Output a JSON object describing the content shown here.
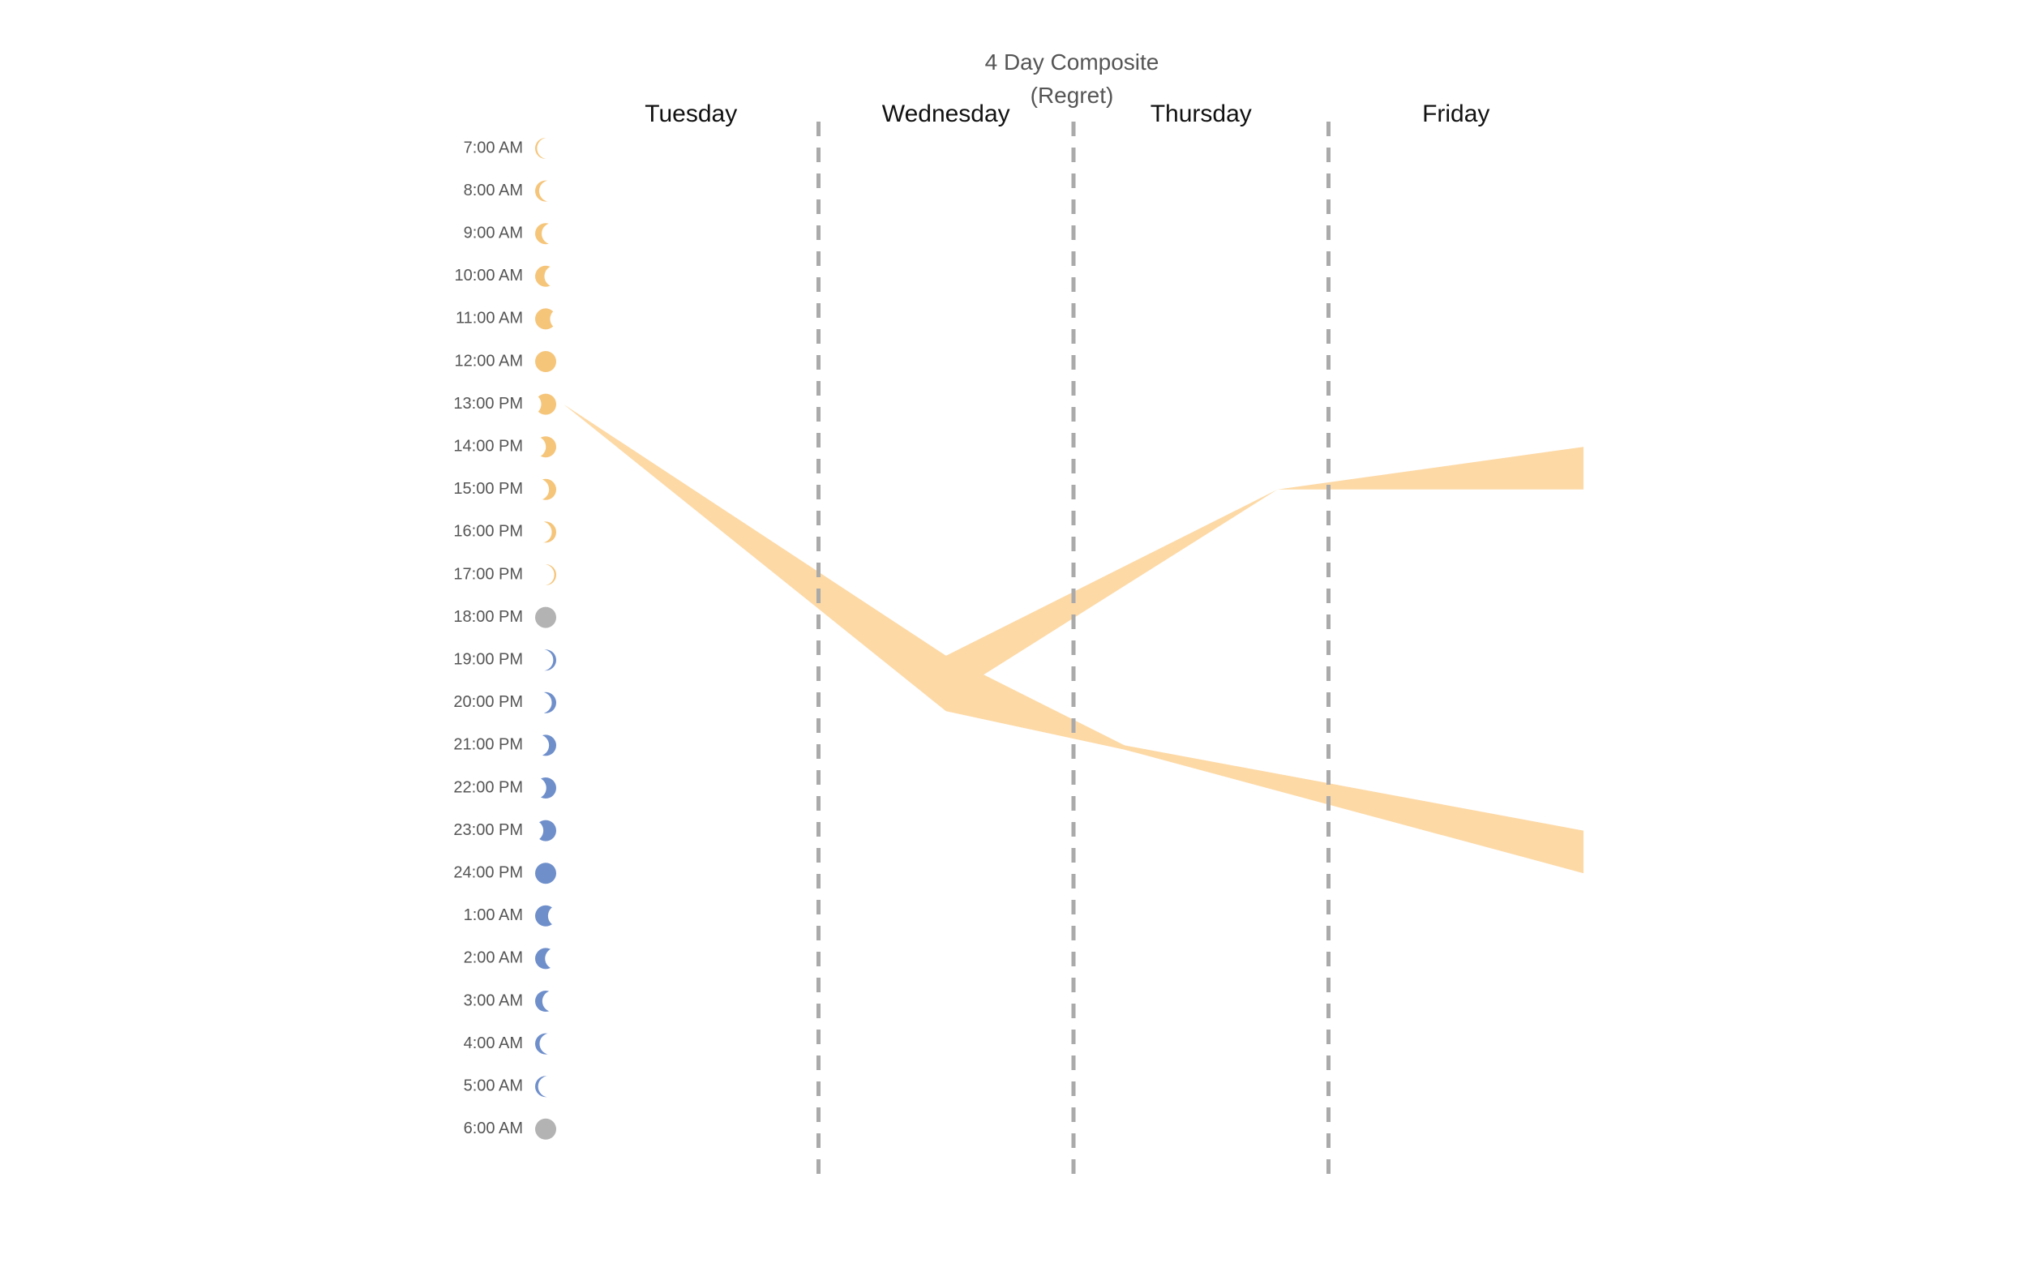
{
  "chart_data": {
    "type": "area",
    "title": "4 Day Composite",
    "subtitle": "(Regret)",
    "days": [
      "Tuesday",
      "Wednesday",
      "Thursday",
      "Friday"
    ],
    "hours": [
      {
        "label": "7:00 AM",
        "icon": "waxing-crescent-sun-icon",
        "phase": 0.1,
        "color": "#f5c57a"
      },
      {
        "label": "8:00 AM",
        "icon": "waxing-crescent-sun-icon",
        "phase": 0.2,
        "color": "#f5c57a"
      },
      {
        "label": "9:00 AM",
        "icon": "waxing-crescent-sun-icon",
        "phase": 0.32,
        "color": "#f5c57a"
      },
      {
        "label": "10:00 AM",
        "icon": "waxing-crescent-sun-icon",
        "phase": 0.45,
        "color": "#f5c57a"
      },
      {
        "label": "11:00 AM",
        "icon": "waxing-gibbous-sun-icon",
        "phase": 0.72,
        "color": "#f5c57a"
      },
      {
        "label": "12:00 AM",
        "icon": "full-sun-icon",
        "phase": 1.0,
        "color": "#f5c57a"
      },
      {
        "label": "13:00 PM",
        "icon": "waning-gibbous-sun-icon",
        "phase": 0.72,
        "color": "#f5c57a"
      },
      {
        "label": "14:00 PM",
        "icon": "waning-crescent-sun-icon",
        "phase": 0.5,
        "color": "#f5c57a"
      },
      {
        "label": "15:00 PM",
        "icon": "waning-crescent-sun-icon",
        "phase": 0.35,
        "color": "#f5c57a"
      },
      {
        "label": "16:00 PM",
        "icon": "waning-crescent-sun-icon",
        "phase": 0.22,
        "color": "#f5c57a"
      },
      {
        "label": "17:00 PM",
        "icon": "waning-crescent-sun-icon",
        "phase": 0.1,
        "color": "#f5c57a"
      },
      {
        "label": "18:00 PM",
        "icon": "transition-dot-icon",
        "phase": 1.0,
        "color": "#b3b3b3"
      },
      {
        "label": "19:00 PM",
        "icon": "waxing-crescent-moon-icon",
        "phase": 0.15,
        "color": "#6f8fcb"
      },
      {
        "label": "20:00 PM",
        "icon": "waxing-crescent-moon-icon",
        "phase": 0.22,
        "color": "#6f8fcb"
      },
      {
        "label": "21:00 PM",
        "icon": "waxing-crescent-moon-icon",
        "phase": 0.35,
        "color": "#6f8fcb"
      },
      {
        "label": "22:00 PM",
        "icon": "waxing-crescent-moon-icon",
        "phase": 0.48,
        "color": "#6f8fcb"
      },
      {
        "label": "23:00 PM",
        "icon": "waxing-gibbous-moon-icon",
        "phase": 0.62,
        "color": "#6f8fcb"
      },
      {
        "label": "24:00 PM",
        "icon": "full-moon-icon",
        "phase": 1.0,
        "color": "#6f8fcb"
      },
      {
        "label": "1:00 AM",
        "icon": "waning-gibbous-moon-icon",
        "phase": 0.62,
        "color": "#6f8fcb"
      },
      {
        "label": "2:00 AM",
        "icon": "waning-crescent-moon-icon",
        "phase": 0.48,
        "color": "#6f8fcb"
      },
      {
        "label": "3:00 AM",
        "icon": "waning-crescent-moon-icon",
        "phase": 0.35,
        "color": "#6f8fcb"
      },
      {
        "label": "4:00 AM",
        "icon": "waning-crescent-moon-icon",
        "phase": 0.22,
        "color": "#6f8fcb"
      },
      {
        "label": "5:00 AM",
        "icon": "waning-crescent-moon-icon",
        "phase": 0.15,
        "color": "#6f8fcb"
      },
      {
        "label": "6:00 AM",
        "icon": "transition-dot-icon",
        "phase": 1.0,
        "color": "#b3b3b3"
      }
    ],
    "bands": [
      {
        "name": "",
        "color": "#fdd9a6",
        "points": [
          {
            "day": 0.0,
            "top": 6.0,
            "bottom": 6.0
          },
          {
            "day": 1.5,
            "top": 11.9,
            "bottom": 13.2
          },
          {
            "day": 2.2,
            "top": 14.0,
            "bottom": 14.1
          },
          {
            "day": 4.0,
            "top": 16.0,
            "bottom": 17.0
          }
        ]
      },
      {
        "name": "",
        "color": "#fdd9a6",
        "points": [
          {
            "day": 1.5,
            "top": 11.9,
            "bottom": 12.9
          },
          {
            "day": 2.8,
            "top": 8.0,
            "bottom": 8.0
          },
          {
            "day": 4.0,
            "top": 7.0,
            "bottom": 8.0
          }
        ]
      }
    ],
    "dividers": [
      "Tuesday|Wednesday",
      "Wednesday|Thursday",
      "Thursday|Friday"
    ],
    "xlabel": "",
    "ylabel": ""
  }
}
